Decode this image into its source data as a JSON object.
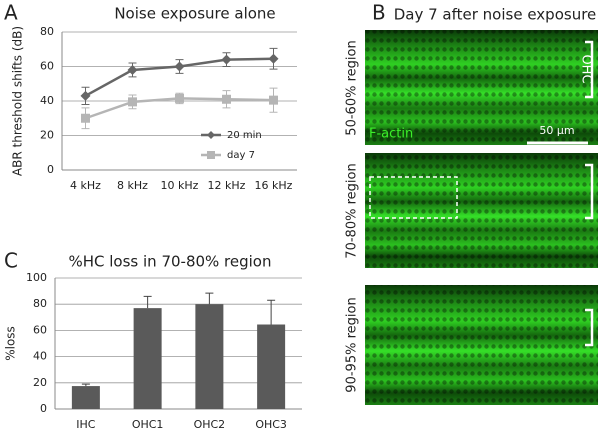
{
  "chart_data": [
    {
      "type": "line",
      "panel": "A",
      "title": "Noise exposure alone",
      "ylabel": "ABR threshold shifts (dB)",
      "categories": [
        "4 kHz",
        "8 kHz",
        "10 kHz",
        "12 kHz",
        "16 kHz"
      ],
      "series": [
        {
          "name": "20 min",
          "color": "#666666",
          "marker": "diamond",
          "values": [
            43,
            58,
            60,
            64,
            64.5
          ],
          "errors": [
            5,
            4,
            4,
            4,
            6
          ]
        },
        {
          "name": "day 7",
          "color": "#b5b5b5",
          "marker": "square",
          "values": [
            30,
            39.5,
            41.5,
            41,
            40.5
          ],
          "errors": [
            6,
            4,
            3,
            5,
            7
          ]
        }
      ],
      "ylim": [
        0,
        80
      ],
      "yticks": [
        0,
        20,
        40,
        60,
        80
      ],
      "grid": true,
      "legend": "lower right"
    },
    {
      "type": "bar",
      "panel": "C",
      "title": "%HC loss in 70-80% region",
      "ylabel": "%loss",
      "categories": [
        "IHC",
        "OHC1",
        "OHC2",
        "OHC3"
      ],
      "values": [
        17.5,
        77,
        80,
        64.5
      ],
      "errors": [
        1.5,
        9,
        8.5,
        18.5
      ],
      "color": "#5a5a5a",
      "ylim": [
        0,
        100
      ],
      "yticks": [
        0,
        20,
        40,
        60,
        80,
        100
      ],
      "grid": true
    }
  ],
  "images": {
    "panel": "B",
    "title": "Day 7 after noise exposure",
    "regions": [
      "50-60% region",
      "70-80% region",
      "90-95% region"
    ],
    "stain": "F-actin",
    "cell_label": "OHC",
    "scale": "50 μm"
  }
}
